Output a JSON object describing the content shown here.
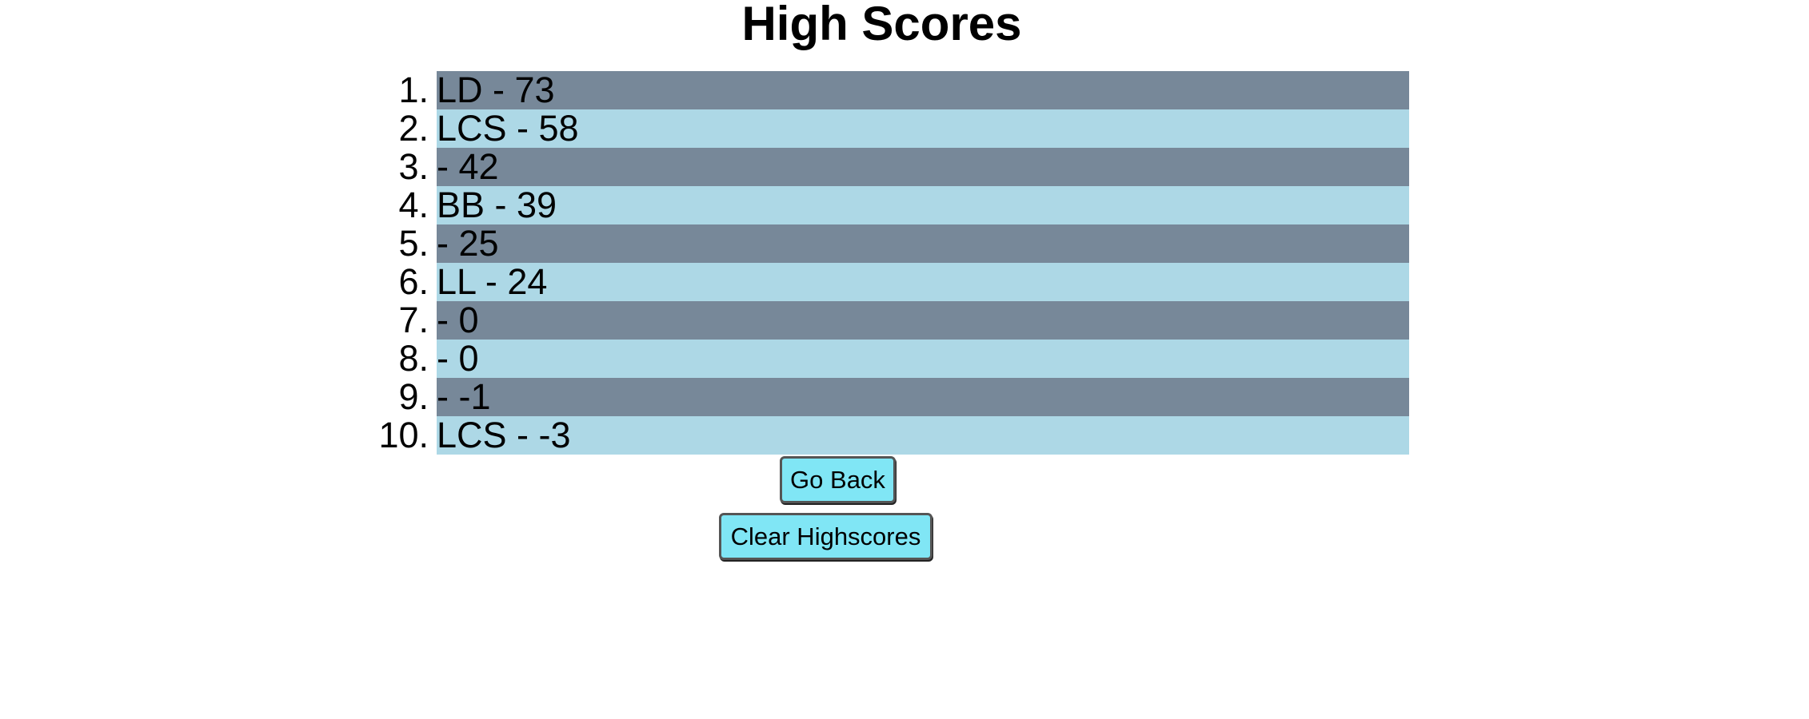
{
  "header": {
    "title": "High Scores"
  },
  "scores": [
    {
      "rank": "1.",
      "entry": "LD - 73"
    },
    {
      "rank": "2.",
      "entry": "LCS - 58"
    },
    {
      "rank": "3.",
      "entry": "- 42"
    },
    {
      "rank": "4.",
      "entry": "BB - 39"
    },
    {
      "rank": "5.",
      "entry": "- 25"
    },
    {
      "rank": "6.",
      "entry": "LL - 24"
    },
    {
      "rank": "7.",
      "entry": "- 0"
    },
    {
      "rank": "8.",
      "entry": "- 0"
    },
    {
      "rank": "9.",
      "entry": "- -1"
    },
    {
      "rank": "10.",
      "entry": "LCS - -3"
    }
  ],
  "buttons": {
    "go_back": "Go Back",
    "clear_highscores": "Clear Highscores"
  },
  "colors": {
    "row_odd": "#778899",
    "row_even": "#add8e6",
    "button_bg": "#80e6f5"
  }
}
